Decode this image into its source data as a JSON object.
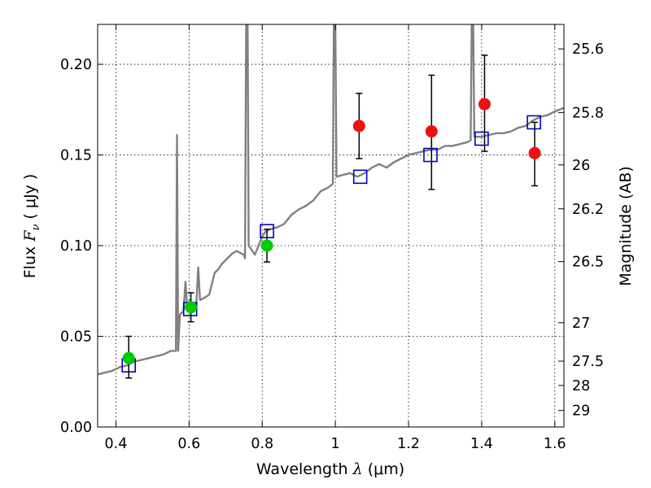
{
  "chart_data": {
    "type": "scatter",
    "xlabel": {
      "prefix": "Wavelength  ",
      "symbol": "λ",
      "suffix": " (μm)"
    },
    "ylabel": {
      "prefix": "Flux  ",
      "symbol": "F",
      "subscript": "ν",
      "suffix": "  ( μJy )"
    },
    "y2label": "Magnitude (AB)",
    "xlim": [
      0.35,
      1.625
    ],
    "ylim": [
      0.0,
      0.222
    ],
    "x_ticks": [
      {
        "value": 0.4,
        "label": "0.4"
      },
      {
        "value": 0.6,
        "label": "0.6"
      },
      {
        "value": 0.8,
        "label": "0.8"
      },
      {
        "value": 1.0,
        "label": "1"
      },
      {
        "value": 1.2,
        "label": "1.2"
      },
      {
        "value": 1.4,
        "label": "1.4"
      },
      {
        "value": 1.6,
        "label": "1.6"
      }
    ],
    "y_ticks": [
      {
        "value": 0.0,
        "label": "0.00"
      },
      {
        "value": 0.05,
        "label": "0.05"
      },
      {
        "value": 0.1,
        "label": "0.10"
      },
      {
        "value": 0.15,
        "label": "0.15"
      },
      {
        "value": 0.2,
        "label": "0.20"
      }
    ],
    "mag_ticks": [
      {
        "flux": 0.2085,
        "label": "25.6"
      },
      {
        "flux": 0.1734,
        "label": "25.8"
      },
      {
        "flux": 0.1445,
        "label": "26"
      },
      {
        "flux": 0.1203,
        "label": "26.2"
      },
      {
        "flux": 0.0912,
        "label": "26.5"
      },
      {
        "flux": 0.0575,
        "label": "27"
      },
      {
        "flux": 0.0363,
        "label": "27.5"
      },
      {
        "flux": 0.0229,
        "label": "28"
      },
      {
        "flux": 0.0091,
        "label": "29"
      }
    ],
    "grid": true,
    "model_spectrum": {
      "color": "#808080",
      "points": [
        [
          0.35,
          0.029
        ],
        [
          0.37,
          0.03
        ],
        [
          0.39,
          0.031
        ],
        [
          0.41,
          0.033
        ],
        [
          0.43,
          0.034
        ],
        [
          0.45,
          0.036
        ],
        [
          0.47,
          0.037
        ],
        [
          0.49,
          0.038
        ],
        [
          0.51,
          0.039
        ],
        [
          0.53,
          0.04
        ],
        [
          0.55,
          0.042
        ],
        [
          0.562,
          0.042
        ],
        [
          0.564,
          0.042
        ],
        [
          0.567,
          0.161
        ],
        [
          0.57,
          0.042
        ],
        [
          0.575,
          0.062
        ],
        [
          0.585,
          0.064
        ],
        [
          0.59,
          0.08
        ],
        [
          0.595,
          0.066
        ],
        [
          0.603,
          0.07
        ],
        [
          0.612,
          0.066
        ],
        [
          0.62,
          0.068
        ],
        [
          0.625,
          0.088
        ],
        [
          0.63,
          0.07
        ],
        [
          0.64,
          0.071
        ],
        [
          0.655,
          0.073
        ],
        [
          0.67,
          0.085
        ],
        [
          0.68,
          0.087
        ],
        [
          0.69,
          0.09
        ],
        [
          0.7,
          0.092
        ],
        [
          0.71,
          0.094
        ],
        [
          0.72,
          0.096
        ],
        [
          0.73,
          0.097
        ],
        [
          0.74,
          0.096
        ],
        [
          0.75,
          0.095
        ],
        [
          0.753,
          0.093
        ],
        [
          0.756,
          0.222
        ],
        [
          0.76,
          0.222
        ],
        [
          0.763,
          0.1
        ],
        [
          0.77,
          0.098
        ],
        [
          0.78,
          0.095
        ],
        [
          0.79,
          0.1
        ],
        [
          0.8,
          0.105
        ],
        [
          0.81,
          0.108
        ],
        [
          0.82,
          0.109
        ],
        [
          0.84,
          0.11
        ],
        [
          0.86,
          0.112
        ],
        [
          0.88,
          0.117
        ],
        [
          0.9,
          0.12
        ],
        [
          0.92,
          0.122
        ],
        [
          0.94,
          0.125
        ],
        [
          0.96,
          0.13
        ],
        [
          0.98,
          0.132
        ],
        [
          0.993,
          0.134
        ],
        [
          0.996,
          0.222
        ],
        [
          1.0,
          0.222
        ],
        [
          1.003,
          0.138
        ],
        [
          1.02,
          0.139
        ],
        [
          1.04,
          0.14
        ],
        [
          1.06,
          0.138
        ],
        [
          1.08,
          0.14
        ],
        [
          1.1,
          0.143
        ],
        [
          1.12,
          0.145
        ],
        [
          1.14,
          0.143
        ],
        [
          1.16,
          0.146
        ],
        [
          1.18,
          0.148
        ],
        [
          1.2,
          0.15
        ],
        [
          1.22,
          0.151
        ],
        [
          1.24,
          0.152
        ],
        [
          1.26,
          0.153
        ],
        [
          1.28,
          0.153
        ],
        [
          1.3,
          0.155
        ],
        [
          1.32,
          0.155
        ],
        [
          1.34,
          0.156
        ],
        [
          1.36,
          0.157
        ],
        [
          1.37,
          0.158
        ],
        [
          1.373,
          0.222
        ],
        [
          1.377,
          0.222
        ],
        [
          1.38,
          0.16
        ],
        [
          1.4,
          0.16
        ],
        [
          1.42,
          0.161
        ],
        [
          1.44,
          0.162
        ],
        [
          1.46,
          0.162
        ],
        [
          1.48,
          0.163
        ],
        [
          1.5,
          0.165
        ],
        [
          1.52,
          0.166
        ],
        [
          1.54,
          0.169
        ],
        [
          1.56,
          0.171
        ],
        [
          1.58,
          0.172
        ],
        [
          1.6,
          0.174
        ],
        [
          1.625,
          0.176
        ]
      ]
    },
    "series": [
      {
        "marker": "open-square",
        "color": "#0000cc",
        "points": [
          {
            "x": 0.435,
            "y": 0.034
          },
          {
            "x": 0.603,
            "y": 0.065
          },
          {
            "x": 0.813,
            "y": 0.108
          },
          {
            "x": 1.068,
            "y": 0.138
          },
          {
            "x": 1.26,
            "y": 0.15
          },
          {
            "x": 1.4,
            "y": 0.159
          },
          {
            "x": 1.543,
            "y": 0.168
          }
        ]
      },
      {
        "marker": "filled-circle",
        "color": "#00cc00",
        "points": [
          {
            "x": 0.435,
            "y": 0.038,
            "err_lo": 0.027,
            "err_hi": 0.05
          },
          {
            "x": 0.605,
            "y": 0.066,
            "err_lo": 0.058,
            "err_hi": 0.074
          },
          {
            "x": 0.813,
            "y": 0.1,
            "err_lo": 0.091,
            "err_hi": 0.109
          }
        ]
      },
      {
        "marker": "filled-circle",
        "color": "#ee1111",
        "points": [
          {
            "x": 1.065,
            "y": 0.166,
            "err_lo": 0.148,
            "err_hi": 0.184
          },
          {
            "x": 1.263,
            "y": 0.163,
            "err_lo": 0.131,
            "err_hi": 0.194
          },
          {
            "x": 1.408,
            "y": 0.178,
            "err_lo": 0.152,
            "err_hi": 0.205
          },
          {
            "x": 1.545,
            "y": 0.151,
            "err_lo": 0.133,
            "err_hi": 0.168
          }
        ]
      }
    ]
  }
}
